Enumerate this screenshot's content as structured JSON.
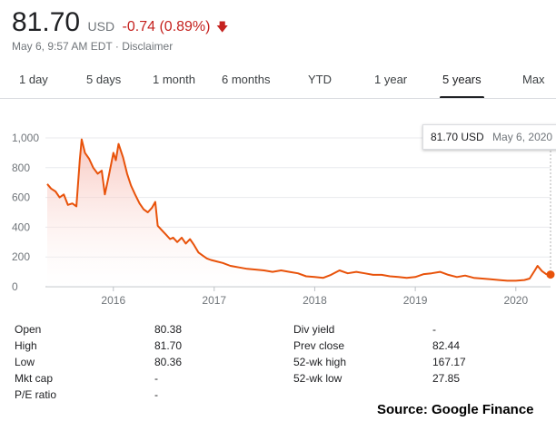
{
  "quote": {
    "price": "81.70",
    "currency": "USD",
    "change": "-0.74 (0.89%)",
    "arrow_icon": "arrow-down-icon",
    "timestamp": "May 6, 9:57 AM EDT",
    "disclaimer": "Disclaimer",
    "change_color": "#c5221f"
  },
  "tabs": [
    {
      "label": "1 day",
      "active": false
    },
    {
      "label": "5 days",
      "active": false
    },
    {
      "label": "1 month",
      "active": false
    },
    {
      "label": "6 months",
      "active": false
    },
    {
      "label": "YTD",
      "active": false
    },
    {
      "label": "1 year",
      "active": false
    },
    {
      "label": "5 years",
      "active": true
    },
    {
      "label": "Max",
      "active": false
    }
  ],
  "tooltip": {
    "price": "81.70 USD",
    "date": "May 6, 2020"
  },
  "chart_data": {
    "type": "area",
    "x_tick_labels": [
      "2016",
      "2017",
      "2018",
      "2019",
      "2020"
    ],
    "y_tick_labels": [
      "1,000",
      "800",
      "600",
      "400",
      "200",
      "0"
    ],
    "ylim": [
      0,
      1000
    ],
    "grid": true,
    "line_color": "#e8520a",
    "series": [
      {
        "points": [
          [
            "2015-05-06",
            690
          ],
          [
            "2015-05-20",
            660
          ],
          [
            "2015-06-05",
            640
          ],
          [
            "2015-06-20",
            600
          ],
          [
            "2015-07-05",
            620
          ],
          [
            "2015-07-20",
            550
          ],
          [
            "2015-08-05",
            560
          ],
          [
            "2015-08-20",
            540
          ],
          [
            "2015-09-01",
            850
          ],
          [
            "2015-09-08",
            990
          ],
          [
            "2015-09-20",
            900
          ],
          [
            "2015-10-05",
            860
          ],
          [
            "2015-10-20",
            800
          ],
          [
            "2015-11-05",
            760
          ],
          [
            "2015-11-20",
            780
          ],
          [
            "2015-12-01",
            620
          ],
          [
            "2015-12-15",
            740
          ],
          [
            "2016-01-01",
            900
          ],
          [
            "2016-01-10",
            850
          ],
          [
            "2016-01-20",
            960
          ],
          [
            "2016-02-05",
            870
          ],
          [
            "2016-02-20",
            760
          ],
          [
            "2016-03-05",
            680
          ],
          [
            "2016-03-20",
            620
          ],
          [
            "2016-04-05",
            560
          ],
          [
            "2016-04-20",
            520
          ],
          [
            "2016-05-05",
            500
          ],
          [
            "2016-05-20",
            530
          ],
          [
            "2016-06-01",
            570
          ],
          [
            "2016-06-10",
            410
          ],
          [
            "2016-06-25",
            380
          ],
          [
            "2016-07-10",
            350
          ],
          [
            "2016-07-25",
            320
          ],
          [
            "2016-08-05",
            330
          ],
          [
            "2016-08-20",
            300
          ],
          [
            "2016-09-05",
            330
          ],
          [
            "2016-09-20",
            290
          ],
          [
            "2016-10-05",
            320
          ],
          [
            "2016-10-20",
            280
          ],
          [
            "2016-11-05",
            230
          ],
          [
            "2016-11-20",
            210
          ],
          [
            "2016-12-05",
            190
          ],
          [
            "2016-12-20",
            180
          ],
          [
            "2017-01-10",
            170
          ],
          [
            "2017-02-01",
            160
          ],
          [
            "2017-03-01",
            140
          ],
          [
            "2017-04-01",
            130
          ],
          [
            "2017-05-01",
            120
          ],
          [
            "2017-06-01",
            115
          ],
          [
            "2017-07-01",
            110
          ],
          [
            "2017-08-01",
            100
          ],
          [
            "2017-09-01",
            110
          ],
          [
            "2017-10-01",
            100
          ],
          [
            "2017-11-01",
            90
          ],
          [
            "2017-12-01",
            70
          ],
          [
            "2018-01-01",
            65
          ],
          [
            "2018-02-01",
            60
          ],
          [
            "2018-03-01",
            80
          ],
          [
            "2018-04-01",
            110
          ],
          [
            "2018-05-01",
            90
          ],
          [
            "2018-06-01",
            100
          ],
          [
            "2018-07-01",
            90
          ],
          [
            "2018-08-01",
            80
          ],
          [
            "2018-09-01",
            80
          ],
          [
            "2018-10-01",
            70
          ],
          [
            "2018-11-01",
            65
          ],
          [
            "2018-12-01",
            60
          ],
          [
            "2019-01-01",
            65
          ],
          [
            "2019-02-01",
            85
          ],
          [
            "2019-03-01",
            90
          ],
          [
            "2019-04-01",
            100
          ],
          [
            "2019-05-01",
            80
          ],
          [
            "2019-06-01",
            65
          ],
          [
            "2019-07-01",
            75
          ],
          [
            "2019-08-01",
            60
          ],
          [
            "2019-09-01",
            55
          ],
          [
            "2019-10-01",
            50
          ],
          [
            "2019-11-01",
            45
          ],
          [
            "2019-12-01",
            40
          ],
          [
            "2020-01-01",
            40
          ],
          [
            "2020-02-01",
            45
          ],
          [
            "2020-02-20",
            55
          ],
          [
            "2020-03-10",
            110
          ],
          [
            "2020-03-20",
            140
          ],
          [
            "2020-04-05",
            105
          ],
          [
            "2020-04-20",
            85
          ],
          [
            "2020-05-06",
            81.7
          ]
        ]
      }
    ]
  },
  "stats": {
    "left": [
      {
        "label": "Open",
        "value": "80.38"
      },
      {
        "label": "High",
        "value": "81.70"
      },
      {
        "label": "Low",
        "value": "80.36"
      },
      {
        "label": "Mkt cap",
        "value": "-"
      },
      {
        "label": "P/E ratio",
        "value": "-"
      }
    ],
    "right": [
      {
        "label": "Div yield",
        "value": "-"
      },
      {
        "label": "Prev close",
        "value": "82.44"
      },
      {
        "label": "52-wk high",
        "value": "167.17"
      },
      {
        "label": "52-wk low",
        "value": "27.85"
      }
    ]
  },
  "source": "Source: Google Finance"
}
